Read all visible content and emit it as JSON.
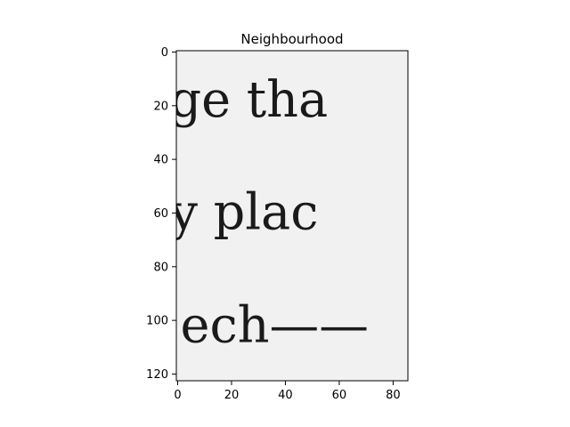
{
  "chart_data": {
    "type": "image",
    "title": "Neighbourhood",
    "xlabel": "",
    "ylabel": "",
    "xlim": [
      -0.5,
      85.5
    ],
    "ylim": [
      122.5,
      -0.5
    ],
    "x_ticks": [
      0,
      20,
      40,
      60,
      80
    ],
    "y_ticks": [
      0,
      20,
      40,
      60,
      80,
      100,
      120
    ],
    "grid": false,
    "legend": "none",
    "colormap": "gray",
    "image_content": {
      "description_lines": [
        {
          "text": "ge tha",
          "x": -3,
          "baseline": 24
        },
        {
          "text": "y plac",
          "x": -3,
          "baseline": 66
        },
        {
          "text": "ech——",
          "x": 1,
          "baseline": 108
        }
      ]
    }
  },
  "colors": {
    "background": "#f1f1f1",
    "ink": "#1a1a1a",
    "axes": "#000000"
  }
}
